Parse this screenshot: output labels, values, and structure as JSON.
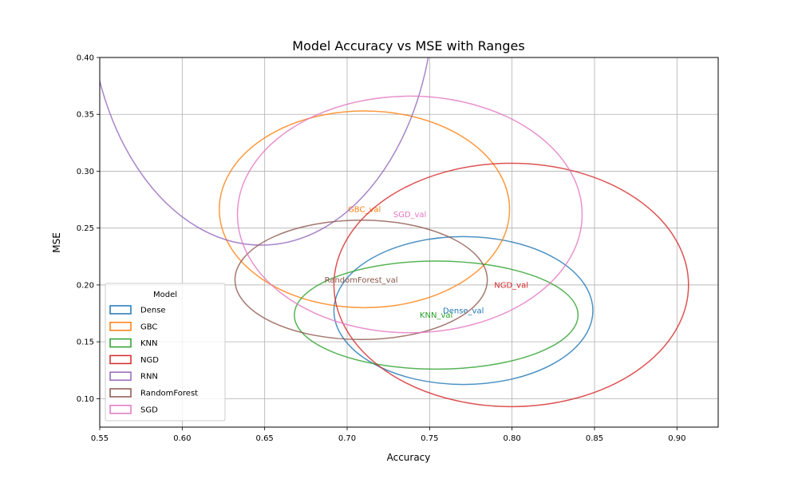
{
  "chart_data": {
    "type": "ellipse-range",
    "title": "Model Accuracy vs MSE with Ranges",
    "xlabel": "Accuracy",
    "ylabel": "MSE",
    "xlim": [
      0.55,
      0.925
    ],
    "ylim": [
      0.075,
      0.4
    ],
    "xticks": [
      "0.55",
      "0.60",
      "0.65",
      "0.70",
      "0.75",
      "0.80",
      "0.85",
      "0.90"
    ],
    "yticks": [
      "0.10",
      "0.15",
      "0.20",
      "0.25",
      "0.30",
      "0.35",
      "0.40"
    ],
    "grid": true,
    "legend": {
      "title": "Model",
      "placement": "lower-left"
    },
    "series": [
      {
        "name": "Dense",
        "color": "#1f77b4",
        "cx": 0.7705,
        "cy": 0.1775,
        "rx": 0.0785,
        "ry": 0.065,
        "label": "Dense_val"
      },
      {
        "name": "GBC",
        "color": "#ff7f0e",
        "cx": 0.7105,
        "cy": 0.2665,
        "rx": 0.088,
        "ry": 0.0865,
        "label": "GBC_val"
      },
      {
        "name": "KNN",
        "color": "#2ca02c",
        "cx": 0.754,
        "cy": 0.1735,
        "rx": 0.086,
        "ry": 0.0475,
        "label": "KNN_val"
      },
      {
        "name": "NGD",
        "color": "#d62728",
        "cx": 0.7995,
        "cy": 0.2,
        "rx": 0.1075,
        "ry": 0.107,
        "label": "NGD_val"
      },
      {
        "name": "RNN",
        "color": "#9467bd",
        "cx": 0.648,
        "cy": 0.46,
        "rx": 0.105,
        "ry": 0.225,
        "label": ""
      },
      {
        "name": "RandomForest",
        "color": "#8c564b",
        "cx": 0.7085,
        "cy": 0.2045,
        "rx": 0.0765,
        "ry": 0.0525,
        "label": "RandomForest_val"
      },
      {
        "name": "SGD",
        "color": "#e377c2",
        "cx": 0.738,
        "cy": 0.262,
        "rx": 0.1045,
        "ry": 0.104,
        "label": "SGD_val"
      }
    ]
  }
}
